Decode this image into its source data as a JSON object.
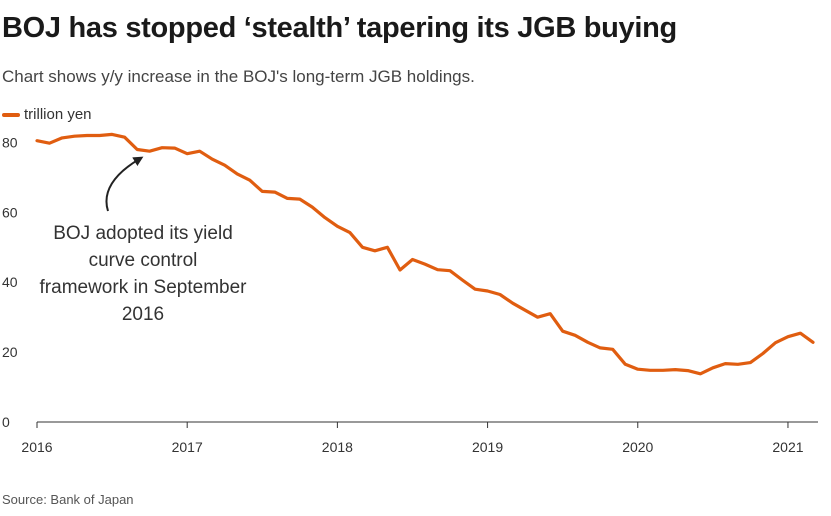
{
  "chart_data": {
    "type": "line",
    "title": "BOJ has stopped ‘stealth’ tapering its JGB buying",
    "subtitle": "Chart shows y/y increase in the BOJ's long-term JGB holdings.",
    "legend": [
      "trillion yen"
    ],
    "source": "Source: Bank of Japan",
    "xlabel": "",
    "ylabel": "",
    "xlim": [
      2016,
      2021.2
    ],
    "ylim": [
      0,
      85
    ],
    "x_ticks": [
      {
        "value": 2016,
        "label": "2016"
      },
      {
        "value": 2017,
        "label": "2017"
      },
      {
        "value": 2018,
        "label": "2018"
      },
      {
        "value": 2019,
        "label": "2019"
      },
      {
        "value": 2020,
        "label": "2020"
      },
      {
        "value": 2021,
        "label": "2021"
      }
    ],
    "y_ticks": [
      {
        "value": 0,
        "label": "0"
      },
      {
        "value": 20,
        "label": "20"
      },
      {
        "value": 40,
        "label": "40"
      },
      {
        "value": 60,
        "label": "60"
      },
      {
        "value": 80,
        "label": "80"
      }
    ],
    "annotation": {
      "lines": [
        "BOJ adopted its yield",
        "curve control",
        "framework in September",
        "2016"
      ],
      "x": 2016.7,
      "y": 77.5
    },
    "series": [
      {
        "name": "trillion yen",
        "color": "#e05d10",
        "x": [
          2016.0,
          2016.083,
          2016.167,
          2016.25,
          2016.333,
          2016.417,
          2016.5,
          2016.583,
          2016.667,
          2016.75,
          2016.833,
          2016.917,
          2017.0,
          2017.083,
          2017.167,
          2017.25,
          2017.333,
          2017.417,
          2017.5,
          2017.583,
          2017.667,
          2017.75,
          2017.833,
          2017.917,
          2018.0,
          2018.083,
          2018.167,
          2018.25,
          2018.333,
          2018.417,
          2018.5,
          2018.583,
          2018.667,
          2018.75,
          2018.833,
          2018.917,
          2019.0,
          2019.083,
          2019.167,
          2019.25,
          2019.333,
          2019.417,
          2019.5,
          2019.583,
          2019.667,
          2019.75,
          2019.833,
          2019.917,
          2020.0,
          2020.083,
          2020.167,
          2020.25,
          2020.333,
          2020.417,
          2020.5,
          2020.583,
          2020.667,
          2020.75,
          2020.833,
          2020.917,
          2021.0,
          2021.083,
          2021.167
        ],
        "values": [
          80.5,
          79.8,
          81.3,
          81.8,
          82.0,
          82.0,
          82.3,
          81.5,
          78.0,
          77.5,
          78.5,
          78.4,
          76.8,
          77.5,
          75.2,
          73.5,
          71.0,
          69.2,
          66.0,
          65.8,
          64.0,
          63.8,
          61.5,
          58.5,
          56.0,
          54.2,
          50.0,
          49.0,
          50.0,
          43.5,
          46.5,
          45.2,
          43.6,
          43.3,
          40.6,
          38.0,
          37.5,
          36.5,
          34.0,
          32.0,
          30.0,
          31.0,
          26.0,
          24.8,
          22.8,
          21.2,
          20.8,
          16.5,
          15.1,
          14.8,
          14.8,
          15.0,
          14.7,
          13.8,
          15.5,
          16.7,
          16.5,
          17.0,
          19.6,
          22.7,
          24.4,
          25.4,
          22.8
        ]
      }
    ]
  }
}
